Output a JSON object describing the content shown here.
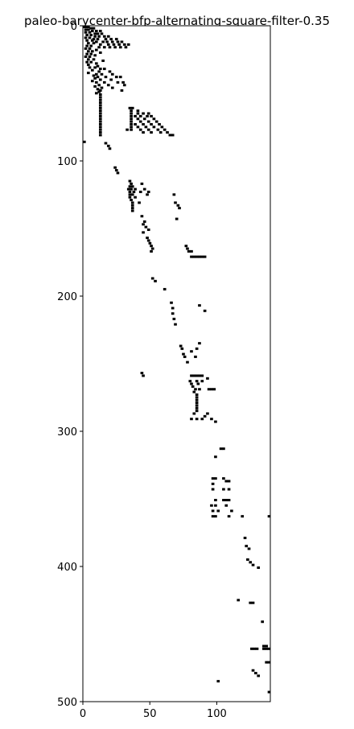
{
  "chart_data": {
    "type": "heatmap",
    "title": "paleo-barycenter-bfp-alternating-square-filter-0.35",
    "xlabel": "",
    "ylabel": "",
    "xlim": [
      0,
      140
    ],
    "ylim": [
      500,
      0
    ],
    "x_ticks": [
      0,
      50,
      100
    ],
    "y_ticks": [
      0,
      100,
      200,
      300,
      400,
      500
    ],
    "grid": false,
    "colors": {
      "filled": "#000000",
      "empty": "#ffffff"
    },
    "points": [
      [
        0,
        0
      ],
      [
        2,
        0
      ],
      [
        3,
        0
      ],
      [
        5,
        1
      ],
      [
        7,
        1
      ],
      [
        1,
        2
      ],
      [
        3,
        2
      ],
      [
        6,
        3
      ],
      [
        9,
        3
      ],
      [
        12,
        3
      ],
      [
        1,
        4
      ],
      [
        4,
        4
      ],
      [
        8,
        5
      ],
      [
        10,
        5
      ],
      [
        13,
        5
      ],
      [
        2,
        6
      ],
      [
        5,
        6
      ],
      [
        8,
        7
      ],
      [
        11,
        7
      ],
      [
        15,
        7
      ],
      [
        18,
        7
      ],
      [
        1,
        8
      ],
      [
        4,
        8
      ],
      [
        7,
        9
      ],
      [
        10,
        9
      ],
      [
        16,
        9
      ],
      [
        20,
        9
      ],
      [
        24,
        9
      ],
      [
        2,
        10
      ],
      [
        6,
        10
      ],
      [
        9,
        11
      ],
      [
        14,
        11
      ],
      [
        17,
        11
      ],
      [
        21,
        11
      ],
      [
        25,
        11
      ],
      [
        28,
        11
      ],
      [
        3,
        12
      ],
      [
        7,
        12
      ],
      [
        12,
        13
      ],
      [
        18,
        13
      ],
      [
        22,
        13
      ],
      [
        26,
        13
      ],
      [
        30,
        13
      ],
      [
        33,
        13
      ],
      [
        2,
        14
      ],
      [
        5,
        14
      ],
      [
        11,
        15
      ],
      [
        15,
        15
      ],
      [
        19,
        15
      ],
      [
        23,
        15
      ],
      [
        27,
        15
      ],
      [
        31,
        15
      ],
      [
        1,
        16
      ],
      [
        4,
        16
      ],
      [
        9,
        17
      ],
      [
        3,
        18
      ],
      [
        6,
        18
      ],
      [
        12,
        19
      ],
      [
        2,
        20
      ],
      [
        5,
        20
      ],
      [
        8,
        21
      ],
      [
        1,
        22
      ],
      [
        4,
        22
      ],
      [
        3,
        24
      ],
      [
        7,
        24
      ],
      [
        14,
        25
      ],
      [
        2,
        26
      ],
      [
        5,
        26
      ],
      [
        9,
        27
      ],
      [
        3,
        28
      ],
      [
        10,
        29
      ],
      [
        4,
        30
      ],
      [
        8,
        30
      ],
      [
        12,
        31
      ],
      [
        15,
        31
      ],
      [
        6,
        32
      ],
      [
        11,
        33
      ],
      [
        19,
        33
      ],
      [
        3,
        34
      ],
      [
        9,
        35
      ],
      [
        13,
        35
      ],
      [
        21,
        35
      ],
      [
        7,
        36
      ],
      [
        10,
        37
      ],
      [
        16,
        37
      ],
      [
        24,
        37
      ],
      [
        27,
        37
      ],
      [
        8,
        38
      ],
      [
        12,
        39
      ],
      [
        20,
        39
      ],
      [
        6,
        40
      ],
      [
        9,
        41
      ],
      [
        15,
        41
      ],
      [
        25,
        41
      ],
      [
        29,
        41
      ],
      [
        11,
        43
      ],
      [
        18,
        43
      ],
      [
        30,
        43
      ],
      [
        8,
        44
      ],
      [
        13,
        45
      ],
      [
        21,
        45
      ],
      [
        10,
        46
      ],
      [
        12,
        47
      ],
      [
        28,
        47
      ],
      [
        11,
        48
      ],
      [
        9,
        49
      ],
      [
        12,
        50
      ],
      [
        12,
        52
      ],
      [
        12,
        54
      ],
      [
        12,
        56
      ],
      [
        12,
        58
      ],
      [
        12,
        60
      ],
      [
        12,
        62
      ],
      [
        12,
        64
      ],
      [
        12,
        66
      ],
      [
        12,
        68
      ],
      [
        12,
        70
      ],
      [
        12,
        72
      ],
      [
        12,
        74
      ],
      [
        12,
        76
      ],
      [
        12,
        78
      ],
      [
        12,
        80
      ],
      [
        34,
        60
      ],
      [
        36,
        60
      ],
      [
        35,
        62
      ],
      [
        40,
        62
      ],
      [
        35,
        64
      ],
      [
        40,
        64
      ],
      [
        44,
        64
      ],
      [
        48,
        64
      ],
      [
        35,
        66
      ],
      [
        38,
        66
      ],
      [
        42,
        66
      ],
      [
        47,
        66
      ],
      [
        50,
        66
      ],
      [
        35,
        68
      ],
      [
        40,
        68
      ],
      [
        45,
        68
      ],
      [
        52,
        68
      ],
      [
        35,
        70
      ],
      [
        42,
        70
      ],
      [
        48,
        70
      ],
      [
        54,
        70
      ],
      [
        35,
        72
      ],
      [
        38,
        72
      ],
      [
        44,
        72
      ],
      [
        50,
        72
      ],
      [
        56,
        72
      ],
      [
        35,
        74
      ],
      [
        40,
        74
      ],
      [
        46,
        74
      ],
      [
        52,
        74
      ],
      [
        58,
        74
      ],
      [
        32,
        76
      ],
      [
        35,
        76
      ],
      [
        42,
        76
      ],
      [
        48,
        76
      ],
      [
        55,
        76
      ],
      [
        60,
        76
      ],
      [
        44,
        78
      ],
      [
        50,
        78
      ],
      [
        57,
        78
      ],
      [
        62,
        78
      ],
      [
        64,
        80
      ],
      [
        66,
        80
      ],
      [
        0,
        85
      ],
      [
        16,
        86
      ],
      [
        18,
        88
      ],
      [
        19,
        90
      ],
      [
        23,
        104
      ],
      [
        24,
        106
      ],
      [
        25,
        108
      ],
      [
        34,
        114
      ],
      [
        35,
        116
      ],
      [
        43,
        116
      ],
      [
        34,
        118
      ],
      [
        36,
        118
      ],
      [
        33,
        120
      ],
      [
        35,
        120
      ],
      [
        38,
        120
      ],
      [
        45,
        120
      ],
      [
        34,
        122
      ],
      [
        37,
        122
      ],
      [
        42,
        122
      ],
      [
        48,
        122
      ],
      [
        34,
        124
      ],
      [
        36,
        124
      ],
      [
        47,
        124
      ],
      [
        67,
        124
      ],
      [
        34,
        126
      ],
      [
        38,
        126
      ],
      [
        35,
        128
      ],
      [
        36,
        130
      ],
      [
        41,
        130
      ],
      [
        68,
        130
      ],
      [
        36,
        132
      ],
      [
        70,
        132
      ],
      [
        36,
        134
      ],
      [
        71,
        134
      ],
      [
        36,
        136
      ],
      [
        43,
        140
      ],
      [
        45,
        144
      ],
      [
        69,
        142
      ],
      [
        44,
        146
      ],
      [
        46,
        148
      ],
      [
        48,
        150
      ],
      [
        44,
        152
      ],
      [
        47,
        156
      ],
      [
        48,
        158
      ],
      [
        49,
        160
      ],
      [
        50,
        162
      ],
      [
        51,
        164
      ],
      [
        50,
        166
      ],
      [
        76,
        162
      ],
      [
        77,
        164
      ],
      [
        78,
        166
      ],
      [
        80,
        166
      ],
      [
        80,
        170
      ],
      [
        82,
        170
      ],
      [
        84,
        170
      ],
      [
        86,
        170
      ],
      [
        88,
        170
      ],
      [
        90,
        170
      ],
      [
        51,
        186
      ],
      [
        53,
        188
      ],
      [
        60,
        194
      ],
      [
        65,
        204
      ],
      [
        66,
        208
      ],
      [
        66,
        212
      ],
      [
        67,
        216
      ],
      [
        68,
        220
      ],
      [
        86,
        206
      ],
      [
        90,
        210
      ],
      [
        72,
        236
      ],
      [
        73,
        238
      ],
      [
        74,
        242
      ],
      [
        75,
        244
      ],
      [
        77,
        248
      ],
      [
        84,
        238
      ],
      [
        86,
        234
      ],
      [
        80,
        240
      ],
      [
        83,
        244
      ],
      [
        43,
        256
      ],
      [
        44,
        258
      ],
      [
        80,
        258
      ],
      [
        82,
        258
      ],
      [
        84,
        258
      ],
      [
        86,
        258
      ],
      [
        88,
        258
      ],
      [
        92,
        260
      ],
      [
        79,
        262
      ],
      [
        84,
        262
      ],
      [
        88,
        262
      ],
      [
        80,
        264
      ],
      [
        85,
        264
      ],
      [
        81,
        266
      ],
      [
        83,
        268
      ],
      [
        86,
        268
      ],
      [
        93,
        268
      ],
      [
        95,
        268
      ],
      [
        97,
        268
      ],
      [
        82,
        270
      ],
      [
        84,
        272
      ],
      [
        84,
        274
      ],
      [
        84,
        276
      ],
      [
        84,
        278
      ],
      [
        84,
        280
      ],
      [
        84,
        282
      ],
      [
        84,
        284
      ],
      [
        82,
        286
      ],
      [
        80,
        290
      ],
      [
        84,
        290
      ],
      [
        88,
        290
      ],
      [
        90,
        288
      ],
      [
        92,
        286
      ],
      [
        95,
        290
      ],
      [
        98,
        292
      ],
      [
        102,
        312
      ],
      [
        104,
        312
      ],
      [
        98,
        318
      ],
      [
        96,
        334
      ],
      [
        98,
        334
      ],
      [
        104,
        334
      ],
      [
        106,
        336
      ],
      [
        108,
        336
      ],
      [
        96,
        338
      ],
      [
        96,
        342
      ],
      [
        104,
        342
      ],
      [
        108,
        342
      ],
      [
        98,
        350
      ],
      [
        104,
        350
      ],
      [
        106,
        350
      ],
      [
        108,
        350
      ],
      [
        95,
        354
      ],
      [
        98,
        354
      ],
      [
        106,
        354
      ],
      [
        96,
        358
      ],
      [
        100,
        358
      ],
      [
        110,
        358
      ],
      [
        96,
        362
      ],
      [
        98,
        362
      ],
      [
        108,
        362
      ],
      [
        118,
        362
      ],
      [
        138,
        362
      ],
      [
        120,
        378
      ],
      [
        121,
        384
      ],
      [
        123,
        386
      ],
      [
        122,
        394
      ],
      [
        124,
        396
      ],
      [
        126,
        398
      ],
      [
        130,
        400
      ],
      [
        115,
        424
      ],
      [
        124,
        426
      ],
      [
        126,
        426
      ],
      [
        133,
        440
      ],
      [
        125,
        460
      ],
      [
        127,
        460
      ],
      [
        129,
        460
      ],
      [
        134,
        458
      ],
      [
        136,
        458
      ],
      [
        134,
        460
      ],
      [
        136,
        460
      ],
      [
        138,
        460
      ],
      [
        136,
        470
      ],
      [
        138,
        470
      ],
      [
        126,
        476
      ],
      [
        128,
        478
      ],
      [
        130,
        480
      ],
      [
        100,
        484
      ],
      [
        138,
        492
      ]
    ]
  }
}
